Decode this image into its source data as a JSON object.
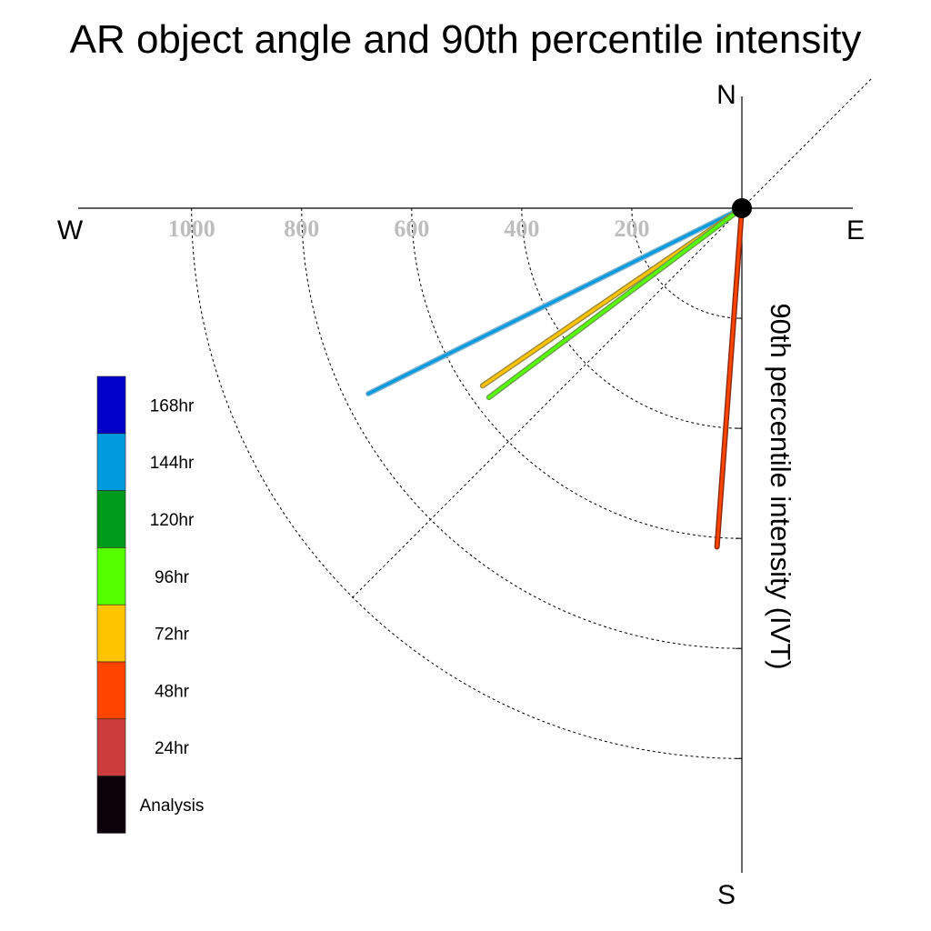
{
  "chart_data": {
    "type": "polar-line",
    "title": "AR object angle and 90th percentile intensity",
    "ylabel": "90th percentile intensity (IVT)",
    "compass": {
      "north": "N",
      "south": "S",
      "east": "E",
      "west": "W"
    },
    "radial_ticks": [
      200,
      400,
      600,
      800,
      1000
    ],
    "radial_tick_labels": [
      "200",
      "400",
      "600",
      "800",
      "1000"
    ],
    "rlim": [
      0,
      1200
    ],
    "grid": true,
    "legend_position": "left",
    "legend": [
      {
        "label": "168hr",
        "color": "#0000c8"
      },
      {
        "label": "144hr",
        "color": "#009bde"
      },
      {
        "label": "120hr",
        "color": "#009b1b"
      },
      {
        "label": "96hr",
        "color": "#55ff00"
      },
      {
        "label": "72hr",
        "color": "#ffc400"
      },
      {
        "label": "48hr",
        "color": "#ff4400"
      },
      {
        "label": "24hr",
        "color": "#cc3c3c"
      },
      {
        "label": "Analysis",
        "color": "#0c0009"
      }
    ],
    "series": [
      {
        "name": "144hr",
        "angle_deg": 243.6,
        "intensity": 758,
        "color": "#009bde",
        "outline": "#7fb3d0"
      },
      {
        "name": "72hr",
        "angle_deg": 235.6,
        "intensity": 571,
        "color": "#ffc400",
        "outline": "#a08a3a"
      },
      {
        "name": "96hr",
        "angle_deg": 233.2,
        "intensity": 574,
        "color": "#55ff00",
        "outline": "#6aa04a"
      },
      {
        "name": "48hr",
        "angle_deg": 184.2,
        "intensity": 617,
        "color": "#ff4400",
        "outline": "#8a2a10"
      }
    ]
  }
}
